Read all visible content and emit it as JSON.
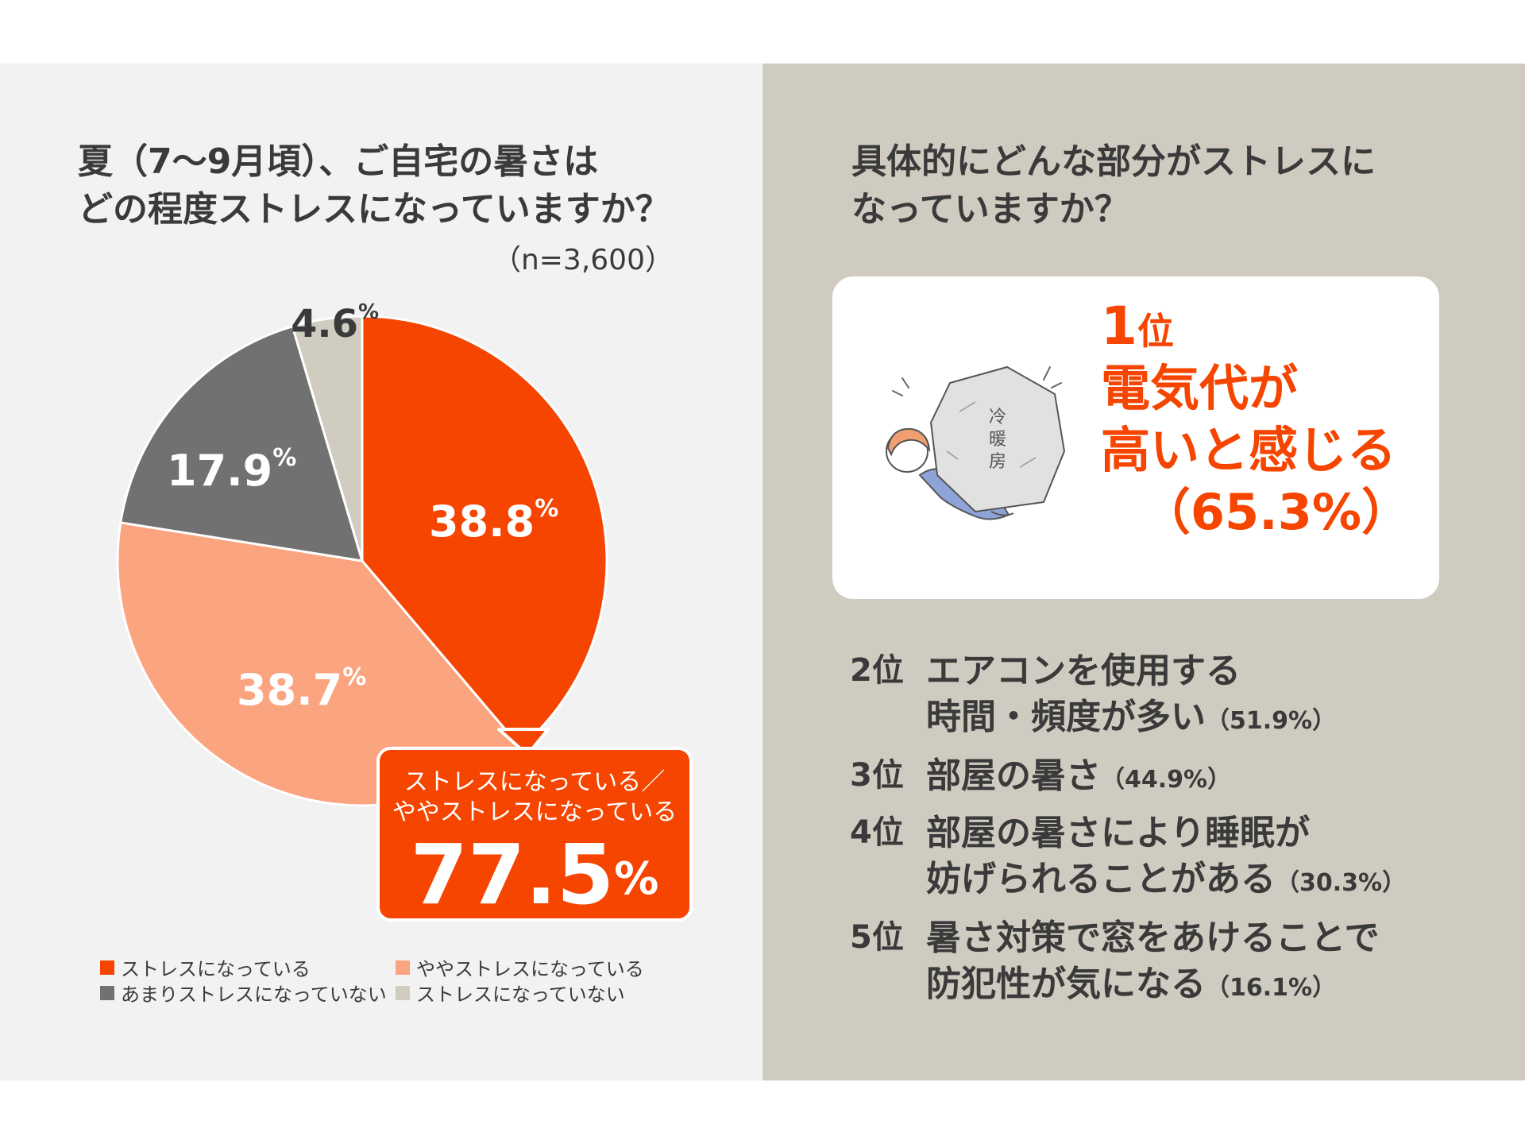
{
  "left": {
    "title_lines": [
      "夏（7〜9月頃）、ご自宅の暑さは",
      "どの程度ストレスになっていますか？"
    ],
    "sample_size": "（n=3,600）"
  },
  "chart_data": {
    "type": "pie",
    "title": "夏（7〜9月頃）、ご自宅の暑さはどの程度ストレスになっていますか？",
    "slices": [
      {
        "name": "ストレスになっている",
        "value": 38.8,
        "label": "38.8",
        "color": "#f54500"
      },
      {
        "name": "ややストレスになっている",
        "value": 38.7,
        "label": "38.7",
        "color": "#fba580"
      },
      {
        "name": "あまりストレスになっていない",
        "value": 17.9,
        "label": "17.9",
        "color": "#717171"
      },
      {
        "name": "ストレスになっていない",
        "value": 4.6,
        "label": "4.6",
        "color": "#d0ccc0"
      }
    ],
    "percent_sign": "%",
    "start": "12 o'clock",
    "direction": "clockwise",
    "legend_position": "bottom"
  },
  "callout": {
    "line1": "ストレスになっている／",
    "line2": "ややストレスになっている",
    "value": "77.5",
    "pct": "%"
  },
  "right": {
    "title_lines": [
      "具体的にどんな部分がストレスに",
      "なっていますか？"
    ],
    "rank1": {
      "rank_num": "1",
      "rank_suffix": "位",
      "line1": "電気代が",
      "line2": "高いと感じる",
      "pct": "（65.3%）",
      "illustration_text": [
        "冷",
        "暖",
        "房"
      ]
    },
    "ranks": [
      {
        "rank": "2位",
        "lines": [
          "エアコンを使用する",
          "時間・頻度が多い"
        ],
        "pct": "（51.9%）"
      },
      {
        "rank": "3位",
        "lines": [
          "部屋の暑さ"
        ],
        "pct": "（44.9%）"
      },
      {
        "rank": "4位",
        "lines": [
          "部屋の暑さにより睡眠が",
          "妨げられることがある"
        ],
        "pct": "（30.3%）"
      },
      {
        "rank": "5位",
        "lines": [
          "暑さ対策で窓をあけることで",
          "防犯性が気になる"
        ],
        "pct": "（16.1%）"
      }
    ]
  }
}
